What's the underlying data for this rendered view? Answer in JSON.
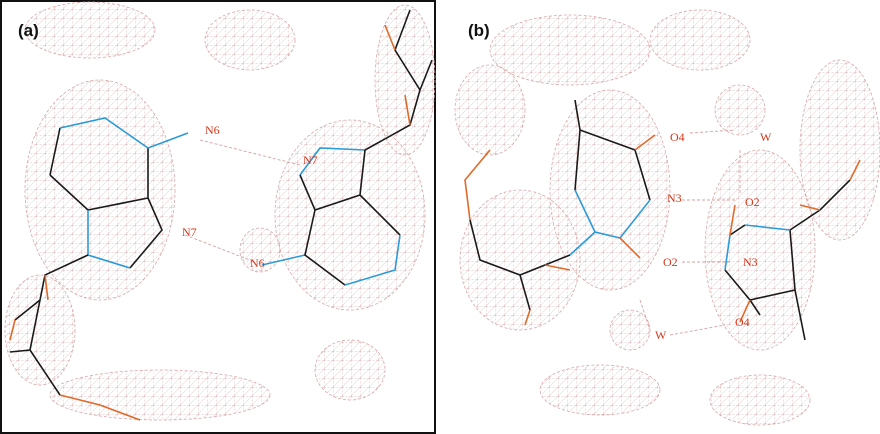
{
  "panels": [
    {
      "label": "(a)",
      "atoms": [
        "N6",
        "N7",
        "N7",
        "N6"
      ]
    },
    {
      "label": "(b)",
      "atoms": [
        "O4",
        "W",
        "N3",
        "O2",
        "O2",
        "N3",
        "W",
        "O4"
      ]
    }
  ]
}
